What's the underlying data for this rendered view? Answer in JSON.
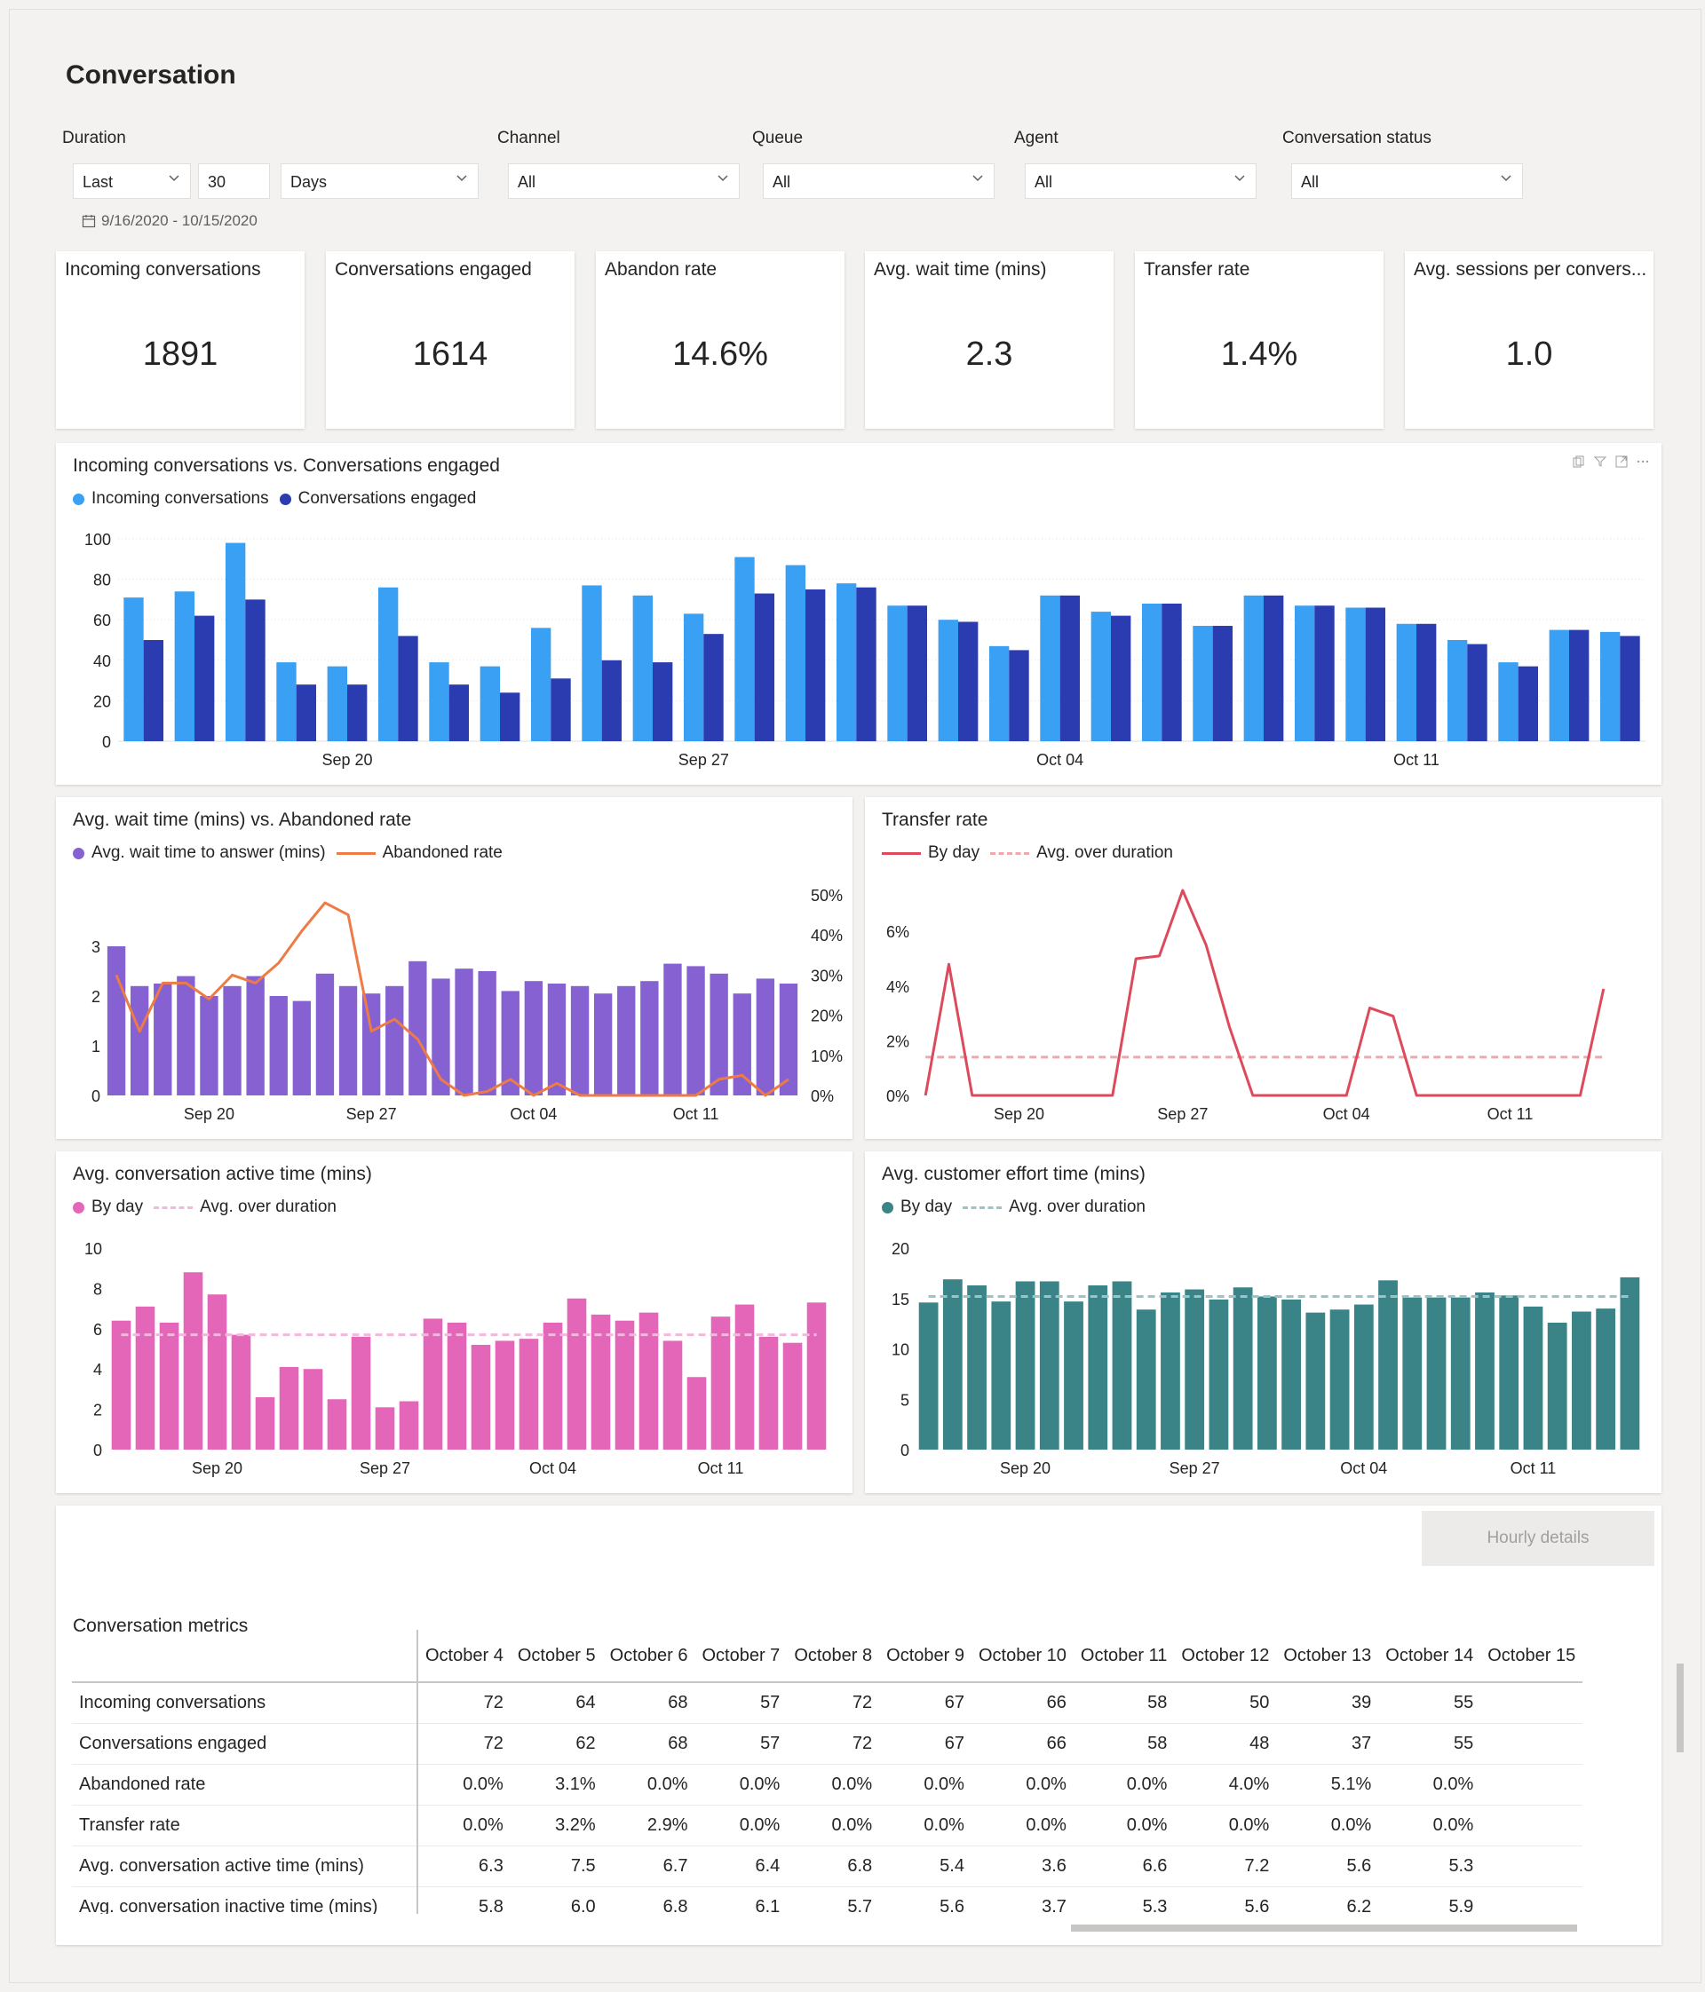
{
  "page": {
    "title": "Conversation"
  },
  "filters": {
    "duration_label": "Duration",
    "duration_mode": "Last",
    "duration_value": "30",
    "duration_unit": "Days",
    "channel_label": "Channel",
    "channel_value": "All",
    "queue_label": "Queue",
    "queue_value": "All",
    "agent_label": "Agent",
    "agent_value": "All",
    "status_label": "Conversation status",
    "status_value": "All",
    "date_range": "9/16/2020 - 10/15/2020"
  },
  "kpis": [
    {
      "label": "Incoming conversations",
      "value": "1891"
    },
    {
      "label": "Conversations engaged",
      "value": "1614"
    },
    {
      "label": "Abandon rate",
      "value": "14.6%"
    },
    {
      "label": "Avg. wait time (mins)",
      "value": "2.3"
    },
    {
      "label": "Transfer rate",
      "value": "1.4%"
    },
    {
      "label": "Avg. sessions per convers...",
      "value": "1.0"
    }
  ],
  "colors": {
    "incoming": "#3aa0f3",
    "engaged": "#2b3bb0",
    "wait": "#8561d1",
    "abandoned": "#ee7b46",
    "transfer": "#dc4a5c",
    "transfer_avg": "#f0a8b0",
    "active": "#e466b9",
    "active_avg": "#f3b9dd",
    "effort": "#3a8487",
    "effort_avg": "#9cc3c5"
  },
  "chart_data": [
    {
      "type": "bar",
      "title": "Incoming conversations vs. Conversations engaged",
      "x_ticks": [
        "Sep 20",
        "Sep 27",
        "Oct 04",
        "Oct 11"
      ],
      "x_tick_index": [
        4,
        11,
        18,
        25
      ],
      "ylim": [
        0,
        100
      ],
      "y_ticks": [
        0,
        20,
        40,
        60,
        80,
        100
      ],
      "legend": "top-left",
      "series": [
        {
          "name": "Incoming conversations",
          "values": [
            71,
            74,
            98,
            39,
            37,
            76,
            39,
            37,
            56,
            77,
            72,
            63,
            91,
            87,
            78,
            67,
            60,
            47,
            72,
            64,
            68,
            57,
            72,
            67,
            66,
            58,
            50,
            39,
            55,
            54
          ]
        },
        {
          "name": "Conversations engaged",
          "values": [
            50,
            62,
            70,
            28,
            28,
            52,
            28,
            24,
            31,
            40,
            39,
            53,
            73,
            75,
            76,
            67,
            59,
            45,
            72,
            62,
            68,
            57,
            72,
            67,
            66,
            58,
            48,
            37,
            55,
            52
          ]
        }
      ]
    },
    {
      "type": "bar",
      "title": "Avg. wait time (mins) vs. Abandoned rate",
      "x_ticks": [
        "Sep 20",
        "Sep 27",
        "Oct 04",
        "Oct 11"
      ],
      "x_tick_index": [
        4,
        11,
        18,
        25
      ],
      "ylim": [
        0,
        3
      ],
      "y_ticks": [
        0,
        1,
        2,
        3
      ],
      "y2lim": [
        "0%",
        "50%"
      ],
      "y2_ticks": [
        "0%",
        "10%",
        "20%",
        "30%",
        "40%",
        "50%"
      ],
      "series": [
        {
          "name": "Avg. wait time to answer (mins)",
          "kind": "bar",
          "values": [
            3.0,
            2.2,
            2.25,
            2.4,
            2.0,
            2.2,
            2.4,
            2.0,
            1.9,
            2.45,
            2.2,
            2.05,
            2.2,
            2.7,
            2.35,
            2.55,
            2.5,
            2.1,
            2.3,
            2.25,
            2.2,
            2.05,
            2.2,
            2.3,
            2.65,
            2.6,
            2.45,
            2.05,
            2.35,
            2.25
          ]
        },
        {
          "name": "Abandoned rate",
          "kind": "line",
          "values": [
            30,
            16,
            28,
            28,
            24,
            30,
            28,
            33,
            41,
            48,
            45,
            16,
            19,
            14,
            4,
            0,
            1,
            4,
            0,
            3,
            0,
            0,
            0,
            0,
            0,
            0,
            4,
            5,
            0,
            4
          ]
        }
      ]
    },
    {
      "type": "line",
      "title": "Transfer rate",
      "x_ticks": [
        "Sep 20",
        "Sep 27",
        "Oct 04",
        "Oct 11"
      ],
      "x_tick_index": [
        4,
        11,
        18,
        25
      ],
      "ylim": [
        0,
        7.5
      ],
      "y_ticks": [
        "0%",
        "2%",
        "4%",
        "6%"
      ],
      "series": [
        {
          "name": "By day",
          "values": [
            0,
            4.8,
            0,
            0,
            0,
            0,
            0,
            0,
            0,
            5.0,
            5.1,
            7.5,
            5.5,
            2.5,
            0,
            0,
            0,
            0,
            0,
            3.2,
            2.9,
            0,
            0,
            0,
            0,
            0,
            0,
            0,
            0,
            3.9
          ]
        },
        {
          "name": "Avg. over duration",
          "values": [
            1.4
          ]
        }
      ]
    },
    {
      "type": "bar",
      "title": "Avg. conversation active time (mins)",
      "x_ticks": [
        "Sep 20",
        "Sep 27",
        "Oct 04",
        "Oct 11"
      ],
      "x_tick_index": [
        4,
        11,
        18,
        25
      ],
      "ylim": [
        0,
        10
      ],
      "y_ticks": [
        0,
        2,
        4,
        6,
        8,
        10
      ],
      "series": [
        {
          "name": "By day",
          "values": [
            6.4,
            7.1,
            6.3,
            8.8,
            7.7,
            5.7,
            2.6,
            4.1,
            4.0,
            2.5,
            5.6,
            2.1,
            2.4,
            6.5,
            6.3,
            5.2,
            5.4,
            5.5,
            6.3,
            7.5,
            6.7,
            6.4,
            6.8,
            5.4,
            3.6,
            6.6,
            7.2,
            5.6,
            5.3,
            7.3
          ]
        },
        {
          "name": "Avg. over duration",
          "values": [
            5.7
          ]
        }
      ]
    },
    {
      "type": "bar",
      "title": "Avg. customer effort time (mins)",
      "x_ticks": [
        "Sep 20",
        "Sep 27",
        "Oct 04",
        "Oct 11"
      ],
      "x_tick_index": [
        4,
        11,
        18,
        25
      ],
      "ylim": [
        0,
        20
      ],
      "y_ticks": [
        0,
        5,
        10,
        15,
        20
      ],
      "series": [
        {
          "name": "By day",
          "values": [
            14.6,
            16.9,
            16.3,
            14.7,
            16.7,
            16.7,
            14.7,
            16.3,
            16.7,
            13.9,
            15.6,
            15.9,
            14.9,
            16.1,
            15.2,
            14.9,
            13.6,
            13.9,
            14.4,
            16.8,
            15.1,
            15.1,
            15.1,
            15.6,
            15.3,
            14.2,
            12.6,
            13.7,
            14.0,
            17.1
          ]
        },
        {
          "name": "Avg. over duration",
          "values": [
            15.2
          ]
        }
      ]
    }
  ],
  "charts": {
    "c1": {
      "legend1": "Incoming conversations",
      "legend2": "Conversations engaged"
    },
    "c2": {
      "legend1": "Avg. wait time to answer (mins)",
      "legend2": "Abandoned rate"
    },
    "c3": {
      "legend1": "By day",
      "legend2": "Avg. over duration"
    },
    "c4": {
      "legend1": "By day",
      "legend2": "Avg. over duration"
    },
    "c5": {
      "legend1": "By day",
      "legend2": "Avg. over duration"
    }
  },
  "table": {
    "title": "Conversation metrics",
    "button_label": "Hourly details",
    "columns": [
      "October 4",
      "October 5",
      "October 6",
      "October 7",
      "October 8",
      "October 9",
      "October 10",
      "October 11",
      "October 12",
      "October 13",
      "October 14",
      "October 15"
    ],
    "rows": [
      {
        "label": "Incoming conversations",
        "values": [
          "72",
          "64",
          "68",
          "57",
          "72",
          "67",
          "66",
          "58",
          "50",
          "39",
          "55",
          ""
        ]
      },
      {
        "label": "Conversations engaged",
        "values": [
          "72",
          "62",
          "68",
          "57",
          "72",
          "67",
          "66",
          "58",
          "48",
          "37",
          "55",
          ""
        ]
      },
      {
        "label": "Abandoned rate",
        "values": [
          "0.0%",
          "3.1%",
          "0.0%",
          "0.0%",
          "0.0%",
          "0.0%",
          "0.0%",
          "0.0%",
          "4.0%",
          "5.1%",
          "0.0%",
          ""
        ]
      },
      {
        "label": "Transfer rate",
        "values": [
          "0.0%",
          "3.2%",
          "2.9%",
          "0.0%",
          "0.0%",
          "0.0%",
          "0.0%",
          "0.0%",
          "0.0%",
          "0.0%",
          "0.0%",
          ""
        ]
      },
      {
        "label": "Avg. conversation active time (mins)",
        "values": [
          "6.3",
          "7.5",
          "6.7",
          "6.4",
          "6.8",
          "5.4",
          "3.6",
          "6.6",
          "7.2",
          "5.6",
          "5.3",
          ""
        ]
      },
      {
        "label": "Avg. conversation inactive time (mins)",
        "values": [
          "5.8",
          "6.0",
          "6.8",
          "6.1",
          "5.7",
          "5.6",
          "3.7",
          "5.3",
          "5.6",
          "6.2",
          "5.9",
          ""
        ]
      }
    ]
  }
}
